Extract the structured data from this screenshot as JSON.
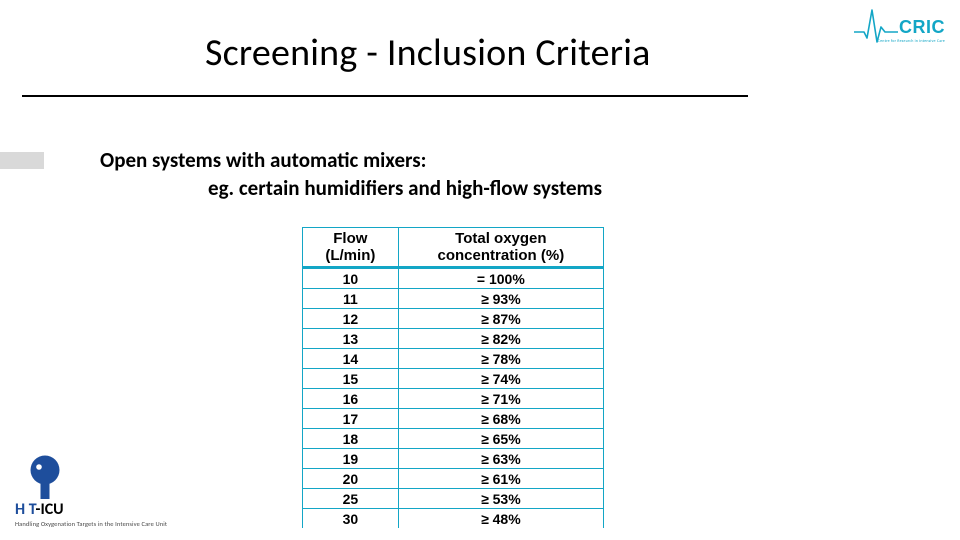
{
  "title": "Screening - Inclusion Criteria",
  "body": {
    "line1": "Open systems with automatic mixers:",
    "line2": "eg. certain humidifiers and high-flow systems"
  },
  "table": {
    "header_a_l1": "Flow",
    "header_a_l2": "(L/min)",
    "header_b_l1": "Total oxygen",
    "header_b_l2": "concentration (%)",
    "rows": [
      {
        "flow": "10",
        "conc": "= 100%"
      },
      {
        "flow": "11",
        "conc": "≥ 93%"
      },
      {
        "flow": "12",
        "conc": "≥ 87%"
      },
      {
        "flow": "13",
        "conc": "≥ 82%"
      },
      {
        "flow": "14",
        "conc": "≥ 78%"
      },
      {
        "flow": "15",
        "conc": "≥ 74%"
      },
      {
        "flow": "16",
        "conc": "≥ 71%"
      },
      {
        "flow": "17",
        "conc": "≥ 68%"
      },
      {
        "flow": "18",
        "conc": "≥ 65%"
      },
      {
        "flow": "19",
        "conc": "≥ 63%"
      },
      {
        "flow": "20",
        "conc": "≥ 61%"
      },
      {
        "flow": "25",
        "conc": "≥ 53%"
      },
      {
        "flow": "30",
        "conc": "≥ 48%"
      }
    ],
    "border_color": "#13a6c6",
    "header_font_size": 15,
    "cell_font_size": 14,
    "col_a_width": 96,
    "col_b_width": 206
  },
  "logos": {
    "cric": {
      "text": "CRIC",
      "subtitle": "Centre for Research in Intensive Care",
      "color": "#13a6c6"
    },
    "hoticu": {
      "text_hot": "H   T",
      "text_icu": "-ICU",
      "subtitle": "Handling Oxygenation Targets in the Intensive Care Unit",
      "blue": "#1e4e9c"
    }
  },
  "colors": {
    "text": "#000000",
    "background": "#ffffff",
    "accent_teal": "#13a6c6",
    "accent_blue": "#1e4e9c",
    "stub_gray": "#d9d9d9"
  }
}
